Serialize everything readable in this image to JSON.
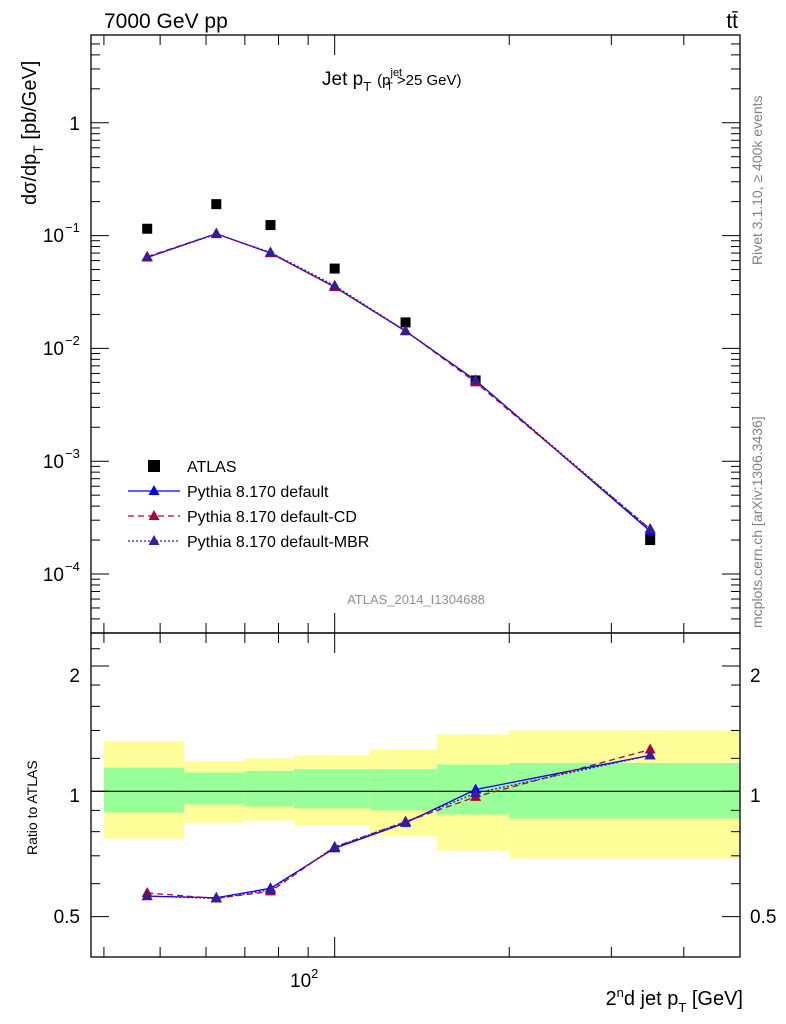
{
  "header": {
    "energy": "7000 GeV pp",
    "process": "tt̄",
    "title_main": "Jet p",
    "title_sub": "T",
    "title_cut_open": "(p",
    "title_cut_sup": "jet",
    "title_cut_sub": "T",
    "title_cut_rest": ">25 GeV)",
    "analysis_id": "ATLAS_2014_I1304688",
    "side_rivet": "Rivet 3.1.10, ≥ 400k events",
    "side_mcplots": "mcplots.cern.ch [arXiv:1306.3436]"
  },
  "axes": {
    "ylabel_main": "dσ/dp",
    "ylabel_main_sub": "T",
    "ylabel_main_unit": " [pb/GeV]",
    "ylabel_ratio": "Ratio to ATLAS",
    "xlabel_pre": "2",
    "xlabel_sup": "n",
    "xlabel_mid": "d jet p",
    "xlabel_sub": "T",
    "xlabel_unit": " [GeV]",
    "x_tick_label": "10",
    "x_tick_sup": "2",
    "y_tick_labels": [
      {
        "mant": "1",
        "exp": ""
      },
      {
        "mant": "10",
        "exp": "−1"
      },
      {
        "mant": "10",
        "exp": "−2"
      },
      {
        "mant": "10",
        "exp": "−3"
      },
      {
        "mant": "10",
        "exp": "−4"
      }
    ],
    "ratio_tick_labels": [
      "2",
      "1",
      "0.5"
    ]
  },
  "chart_data": [
    {
      "type": "scatter",
      "panel": "main",
      "x_scale": "log",
      "y_scale": "log",
      "xlim": [
        38,
        500
      ],
      "ylim": [
        3e-05,
        6
      ],
      "bin_edges": [
        40,
        55,
        70,
        85,
        115,
        150,
        200,
        500
      ],
      "x": [
        47.5,
        62.5,
        77.5,
        100,
        132.5,
        175,
        350
      ],
      "series": [
        {
          "name": "ATLAS",
          "color": "#000000",
          "marker": "square",
          "values": [
            0.115,
            0.19,
            0.124,
            0.051,
            0.017,
            0.0052,
            0.0002
          ]
        },
        {
          "name": "Pythia 8.170 default",
          "color": "#0000ff",
          "marker": "triangle",
          "line": "solid",
          "values": [
            0.064,
            0.104,
            0.07,
            0.035,
            0.0142,
            0.0052,
            0.00024
          ]
        },
        {
          "name": "Pythia 8.170 default-CD",
          "color": "#b0003a",
          "marker": "triangle",
          "line": "dashed",
          "values": [
            0.065,
            0.104,
            0.07,
            0.035,
            0.0143,
            0.005,
            0.00025
          ]
        },
        {
          "name": "Pythia 8.170 default-MBR",
          "color": "#3a1a9a",
          "marker": "triangle",
          "line": "dotted",
          "values": [
            0.064,
            0.103,
            0.071,
            0.036,
            0.0143,
            0.0052,
            0.00025
          ]
        }
      ],
      "legend_position": "bottom-left"
    },
    {
      "type": "line",
      "panel": "ratio",
      "x_scale": "log",
      "y_scale": "log",
      "ylim": [
        0.4,
        2.4
      ],
      "x": [
        47.5,
        62.5,
        77.5,
        100,
        132.5,
        175,
        350
      ],
      "band_stat": [
        [
          0.89,
          1.14
        ],
        [
          0.93,
          1.11
        ],
        [
          0.92,
          1.12
        ],
        [
          0.91,
          1.13
        ],
        [
          0.9,
          1.13
        ],
        [
          0.88,
          1.16
        ],
        [
          0.86,
          1.17
        ]
      ],
      "band_total": [
        [
          0.77,
          1.32
        ],
        [
          0.84,
          1.18
        ],
        [
          0.85,
          1.2
        ],
        [
          0.83,
          1.22
        ],
        [
          0.78,
          1.26
        ],
        [
          0.72,
          1.37
        ],
        [
          0.69,
          1.4
        ]
      ],
      "series": [
        {
          "name": "Pythia 8.170 default",
          "color": "#0000ff",
          "values": [
            0.56,
            0.555,
            0.585,
            0.73,
            0.84,
            1.01,
            1.22
          ]
        },
        {
          "name": "Pythia 8.170 default-CD",
          "color": "#b0003a",
          "values": [
            0.57,
            0.553,
            0.575,
            0.735,
            0.845,
            0.97,
            1.26
          ]
        },
        {
          "name": "Pythia 8.170 default-MBR",
          "color": "#3a1a9a",
          "values": [
            0.56,
            0.553,
            0.58,
            0.735,
            0.845,
            0.99,
            1.22
          ]
        }
      ]
    }
  ],
  "colors": {
    "band_total": "#ffff99",
    "band_stat": "#99ff99",
    "frame": "#000000",
    "side_text": "#808080"
  }
}
